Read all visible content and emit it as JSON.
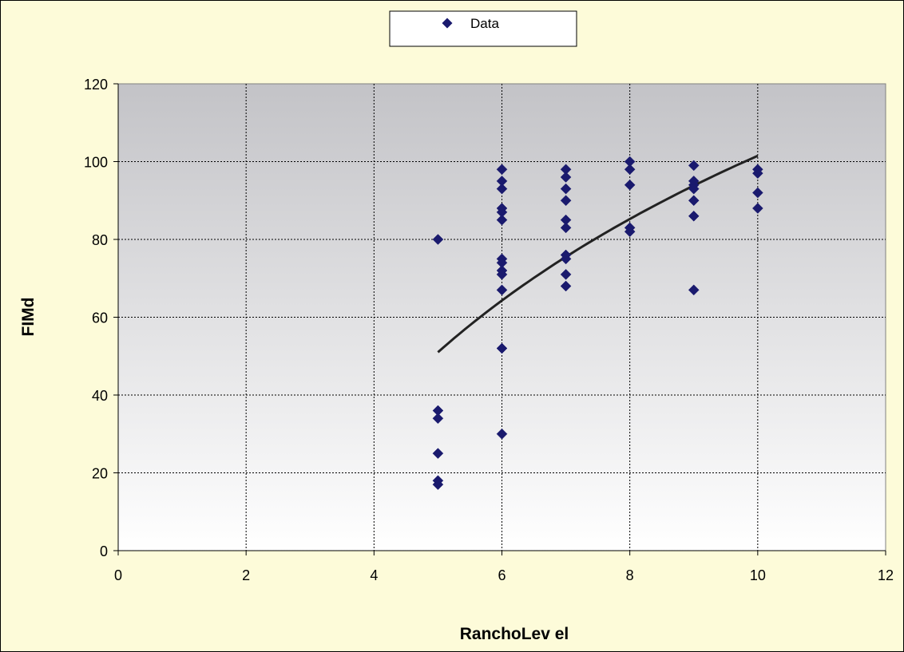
{
  "chart_data": {
    "type": "scatter",
    "xlabel": "RanchoLev el",
    "ylabel": "FIMd",
    "xlim": [
      0,
      12
    ],
    "ylim": [
      0,
      120
    ],
    "xticks": [
      "0",
      "2",
      "4",
      "6",
      "8",
      "10",
      "12"
    ],
    "yticks": [
      "0",
      "20",
      "40",
      "60",
      "80",
      "100",
      "120"
    ],
    "grid": true,
    "legend": {
      "position": "top-center",
      "entries": [
        "Data"
      ]
    },
    "colors": {
      "marker": "#1a1a6e",
      "trend": "#222222",
      "plot_top": "#c3c3c7",
      "plot_bottom": "#ffffff"
    },
    "series": [
      {
        "name": "Data",
        "points": [
          [
            5,
            80
          ],
          [
            5,
            36
          ],
          [
            5,
            34
          ],
          [
            5,
            25
          ],
          [
            5,
            18
          ],
          [
            5,
            17
          ],
          [
            6,
            98
          ],
          [
            6,
            95
          ],
          [
            6,
            93
          ],
          [
            6,
            88
          ],
          [
            6,
            87
          ],
          [
            6,
            85
          ],
          [
            6,
            75
          ],
          [
            6,
            74
          ],
          [
            6,
            72
          ],
          [
            6,
            71
          ],
          [
            6,
            67
          ],
          [
            6,
            52
          ],
          [
            6,
            30
          ],
          [
            7,
            98
          ],
          [
            7,
            96
          ],
          [
            7,
            93
          ],
          [
            7,
            90
          ],
          [
            7,
            85
          ],
          [
            7,
            83
          ],
          [
            7,
            76
          ],
          [
            7,
            75
          ],
          [
            7,
            71
          ],
          [
            7,
            68
          ],
          [
            8,
            100
          ],
          [
            8,
            98
          ],
          [
            8,
            94
          ],
          [
            8,
            83
          ],
          [
            8,
            82
          ],
          [
            9,
            99
          ],
          [
            9,
            95
          ],
          [
            9,
            94
          ],
          [
            9,
            93
          ],
          [
            9,
            90
          ],
          [
            9,
            86
          ],
          [
            9,
            67
          ],
          [
            10,
            98
          ],
          [
            10,
            97
          ],
          [
            10,
            92
          ],
          [
            10,
            88
          ]
        ]
      }
    ],
    "trendline": {
      "type": "logarithmic",
      "points": [
        [
          5,
          51
        ],
        [
          6,
          67.5
        ],
        [
          7,
          79.5
        ],
        [
          8,
          88.5
        ],
        [
          9,
          95.5
        ],
        [
          10,
          101.5
        ]
      ]
    }
  }
}
